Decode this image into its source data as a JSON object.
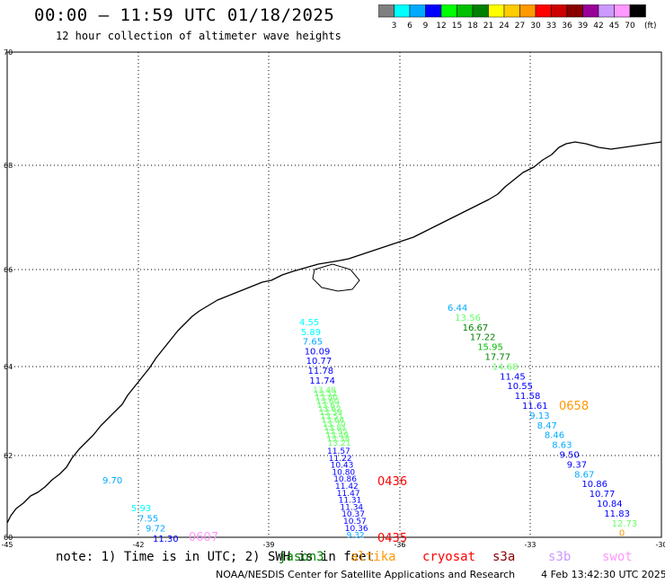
{
  "header": {
    "title": "00:00 – 11:59 UTC 01/18/2025",
    "subtitle": "12 hour collection of altimeter wave heights"
  },
  "legend": {
    "unit": "(ft)",
    "ticks": [
      "3",
      "6",
      "9",
      "12",
      "15",
      "18",
      "21",
      "24",
      "27",
      "30",
      "33",
      "36",
      "39",
      "42",
      "45",
      "70"
    ],
    "colors": [
      "#808080",
      "#00ffff",
      "#00aaff",
      "#0000ff",
      "#00ff00",
      "#00c000",
      "#008000",
      "#ffff00",
      "#ffcc00",
      "#ff9900",
      "#ff0000",
      "#cc0000",
      "#880000",
      "#990099",
      "#cc99ff",
      "#ff99ff",
      "#000000"
    ]
  },
  "map": {
    "lon_labels": [
      "-45",
      "-42",
      "-39",
      "-36",
      "-33",
      "-30"
    ],
    "lat_labels": [
      "70",
      "68",
      "66",
      "64",
      "62",
      "60"
    ],
    "pass_times": [
      {
        "text": "0436",
        "color": "#ff0000"
      },
      {
        "text": "0435",
        "color": "#ff0000"
      },
      {
        "text": "0658",
        "color": "#ff9900"
      },
      {
        "text": "0607",
        "color": "#ff99ff"
      }
    ],
    "track_left": [
      {
        "v": "9.70",
        "c": "#00aaff"
      },
      {
        "v": "5.93",
        "c": "#00ffff"
      },
      {
        "v": "7.55",
        "c": "#00aaff"
      },
      {
        "v": "9.72",
        "c": "#00aaff"
      },
      {
        "v": "11.30",
        "c": "#0000ff"
      }
    ],
    "track_middle_upper": [
      {
        "v": "4.55",
        "c": "#00ffff"
      },
      {
        "v": "5.89",
        "c": "#00ffff"
      },
      {
        "v": "7.65",
        "c": "#00aaff"
      },
      {
        "v": "10.09",
        "c": "#0000ff"
      },
      {
        "v": "10.77",
        "c": "#0000ff"
      },
      {
        "v": "11.78",
        "c": "#0000ff"
      },
      {
        "v": "11.74",
        "c": "#0000ff"
      }
    ],
    "track_middle_green": [
      "13.48",
      "13.52",
      "13.80",
      "13.60",
      "13.67",
      "13.62",
      "13.59",
      "13.51",
      "13.64",
      "13.70",
      "13.81",
      "13.95",
      "13.49",
      "13.38",
      "13.21"
    ],
    "track_middle_lower": [
      {
        "v": "11.57",
        "c": "#0000ff"
      },
      {
        "v": "11.22",
        "c": "#0000ff"
      },
      {
        "v": "10.43",
        "c": "#0000ff"
      },
      {
        "v": "10.80",
        "c": "#0000ff"
      },
      {
        "v": "10.86",
        "c": "#0000ff"
      },
      {
        "v": "11.42",
        "c": "#0000ff"
      },
      {
        "v": "11.47",
        "c": "#0000ff"
      },
      {
        "v": "11.31",
        "c": "#0000ff"
      },
      {
        "v": "11.34",
        "c": "#0000ff"
      },
      {
        "v": "10.37",
        "c": "#0000ff"
      },
      {
        "v": "10.57",
        "c": "#0000ff"
      },
      {
        "v": "10.36",
        "c": "#0000ff"
      },
      {
        "v": "9.32",
        "c": "#00aaff"
      }
    ],
    "track_right": [
      {
        "v": "6.44",
        "c": "#00aaff"
      },
      {
        "v": "13.56",
        "c": "#66ff66"
      },
      {
        "v": "16.67",
        "c": "#008000"
      },
      {
        "v": "17.22",
        "c": "#008000"
      },
      {
        "v": "15.95",
        "c": "#00c000"
      },
      {
        "v": "17.77",
        "c": "#008000"
      },
      {
        "v": "14.68",
        "c": "#66ff66"
      },
      {
        "v": "11.45",
        "c": "#0000ff"
      },
      {
        "v": "10.55",
        "c": "#0000ff"
      },
      {
        "v": "11.58",
        "c": "#0000ff"
      },
      {
        "v": "11.61",
        "c": "#0000ff"
      },
      {
        "v": "9.13",
        "c": "#00aaff"
      },
      {
        "v": "8.47",
        "c": "#00aaff"
      },
      {
        "v": "8.46",
        "c": "#00aaff"
      },
      {
        "v": "8.63",
        "c": "#00aaff"
      },
      {
        "v": "9.50",
        "c": "#0000ff"
      },
      {
        "v": "9.37",
        "c": "#0000ff"
      },
      {
        "v": "8.67",
        "c": "#00aaff"
      },
      {
        "v": "10.86",
        "c": "#0000ff"
      },
      {
        "v": "10.77",
        "c": "#0000ff"
      },
      {
        "v": "10.84",
        "c": "#0000ff"
      },
      {
        "v": "11.83",
        "c": "#0000ff"
      },
      {
        "v": "12.73",
        "c": "#66ff66"
      },
      {
        "v": "0",
        "c": "#ff9900"
      }
    ]
  },
  "footer": {
    "note": "note:  1) Time is in UTC; 2) SWH is in feet",
    "satellites": [
      {
        "name": "jason3",
        "color": "#008000"
      },
      {
        "name": "altika",
        "color": "#ff9900"
      },
      {
        "name": "cryosat",
        "color": "#ff0000"
      },
      {
        "name": "s3a",
        "color": "#880000"
      },
      {
        "name": "s3b",
        "color": "#cc99ff"
      },
      {
        "name": "swot",
        "color": "#ff99ff"
      }
    ],
    "credit": "NOAA/NESDIS Center for Satellite Applications and Research",
    "timestamp": "4 Feb 13:42:30 UTC 2025"
  }
}
